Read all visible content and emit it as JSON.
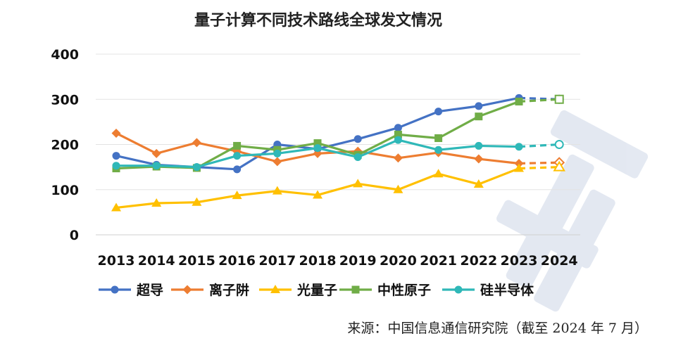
{
  "chart_data": {
    "type": "line",
    "title": "量子计算不同技术路线全球发文情况",
    "categories": [
      "2013",
      "2014",
      "2015",
      "2016",
      "2017",
      "2018",
      "2019",
      "2020",
      "2021",
      "2022",
      "2023",
      "2024"
    ],
    "ylim": [
      0,
      400
    ],
    "yticks": [
      0,
      100,
      200,
      300,
      400
    ],
    "grid": true,
    "legend": "bottom",
    "projected_from_index": 10,
    "series": [
      {
        "name": "超导",
        "color": "#4472c4",
        "marker": "circle",
        "values": [
          175,
          155,
          150,
          145,
          200,
          190,
          212,
          237,
          273,
          285,
          303,
          300
        ]
      },
      {
        "name": "离子阱",
        "color": "#ed7d31",
        "marker": "diamond",
        "values": [
          225,
          180,
          204,
          185,
          162,
          180,
          185,
          170,
          182,
          168,
          158,
          160
        ]
      },
      {
        "name": "光量子",
        "color": "#ffc000",
        "marker": "triangle",
        "values": [
          60,
          70,
          72,
          87,
          97,
          88,
          113,
          100,
          135,
          112,
          147,
          150
        ]
      },
      {
        "name": "中性原子",
        "color": "#70ad47",
        "marker": "square",
        "values": [
          147,
          151,
          148,
          197,
          188,
          203,
          177,
          222,
          214,
          262,
          295,
          300
        ]
      },
      {
        "name": "硅半导体",
        "color": "#2fb8b8",
        "marker": "circle",
        "values": [
          153,
          153,
          150,
          175,
          180,
          192,
          172,
          210,
          188,
          197,
          195,
          200
        ]
      }
    ]
  },
  "source": "来源：中国信息通信研究院（截至 2024 年 7 月）"
}
